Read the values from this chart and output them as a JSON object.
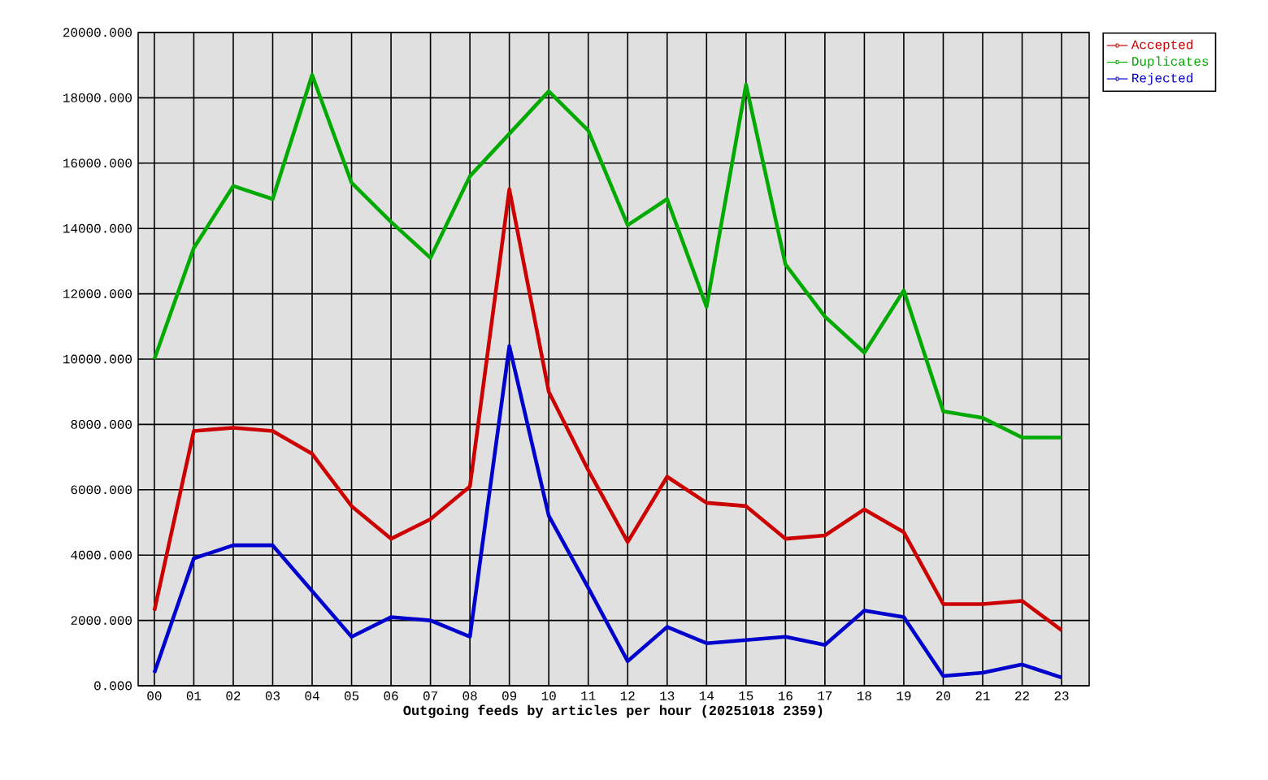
{
  "chart_data": {
    "type": "line",
    "xlabel": "Outgoing feeds by articles per hour (20251018 2359)",
    "categories": [
      "00",
      "01",
      "02",
      "03",
      "04",
      "05",
      "06",
      "07",
      "08",
      "09",
      "10",
      "11",
      "12",
      "13",
      "14",
      "15",
      "16",
      "17",
      "18",
      "19",
      "20",
      "21",
      "22",
      "23"
    ],
    "series": [
      {
        "name": "Accepted",
        "color": "#cc0000",
        "values": [
          2300,
          7800,
          7900,
          7800,
          7100,
          5500,
          4500,
          5100,
          6100,
          15200,
          9000,
          6600,
          4400,
          6400,
          5600,
          5500,
          4500,
          4600,
          5400,
          4700,
          2500,
          2500,
          2600,
          1700
        ]
      },
      {
        "name": "Duplicates",
        "color": "#00aa00",
        "values": [
          10000,
          13400,
          15300,
          14900,
          18700,
          15400,
          14200,
          13100,
          15600,
          16900,
          18200,
          17000,
          14100,
          14900,
          11600,
          18400,
          12900,
          11300,
          10200,
          12100,
          8400,
          8200,
          7600,
          7600
        ]
      },
      {
        "name": "Rejected",
        "color": "#0000cc",
        "values": [
          400,
          3900,
          4300,
          4300,
          2900,
          1500,
          2100,
          2000,
          1500,
          10400,
          5200,
          3000,
          750,
          1800,
          1300,
          1400,
          1500,
          1250,
          2300,
          2100,
          300,
          400,
          650,
          250
        ]
      }
    ],
    "ylim": [
      0,
      20000
    ],
    "yticks": [
      {
        "value": 0,
        "label": "0.000"
      },
      {
        "value": 2000,
        "label": "2000.000"
      },
      {
        "value": 4000,
        "label": "4000.000"
      },
      {
        "value": 6000,
        "label": "6000.000"
      },
      {
        "value": 8000,
        "label": "8000.000"
      },
      {
        "value": 10000,
        "label": "10000.000"
      },
      {
        "value": 12000,
        "label": "12000.000"
      },
      {
        "value": 14000,
        "label": "14000.000"
      },
      {
        "value": 16000,
        "label": "16000.000"
      },
      {
        "value": 18000,
        "label": "18000.000"
      },
      {
        "value": 20000,
        "label": "20000.000"
      }
    ],
    "grid": true,
    "legend": "top right",
    "line_style": "solid"
  }
}
